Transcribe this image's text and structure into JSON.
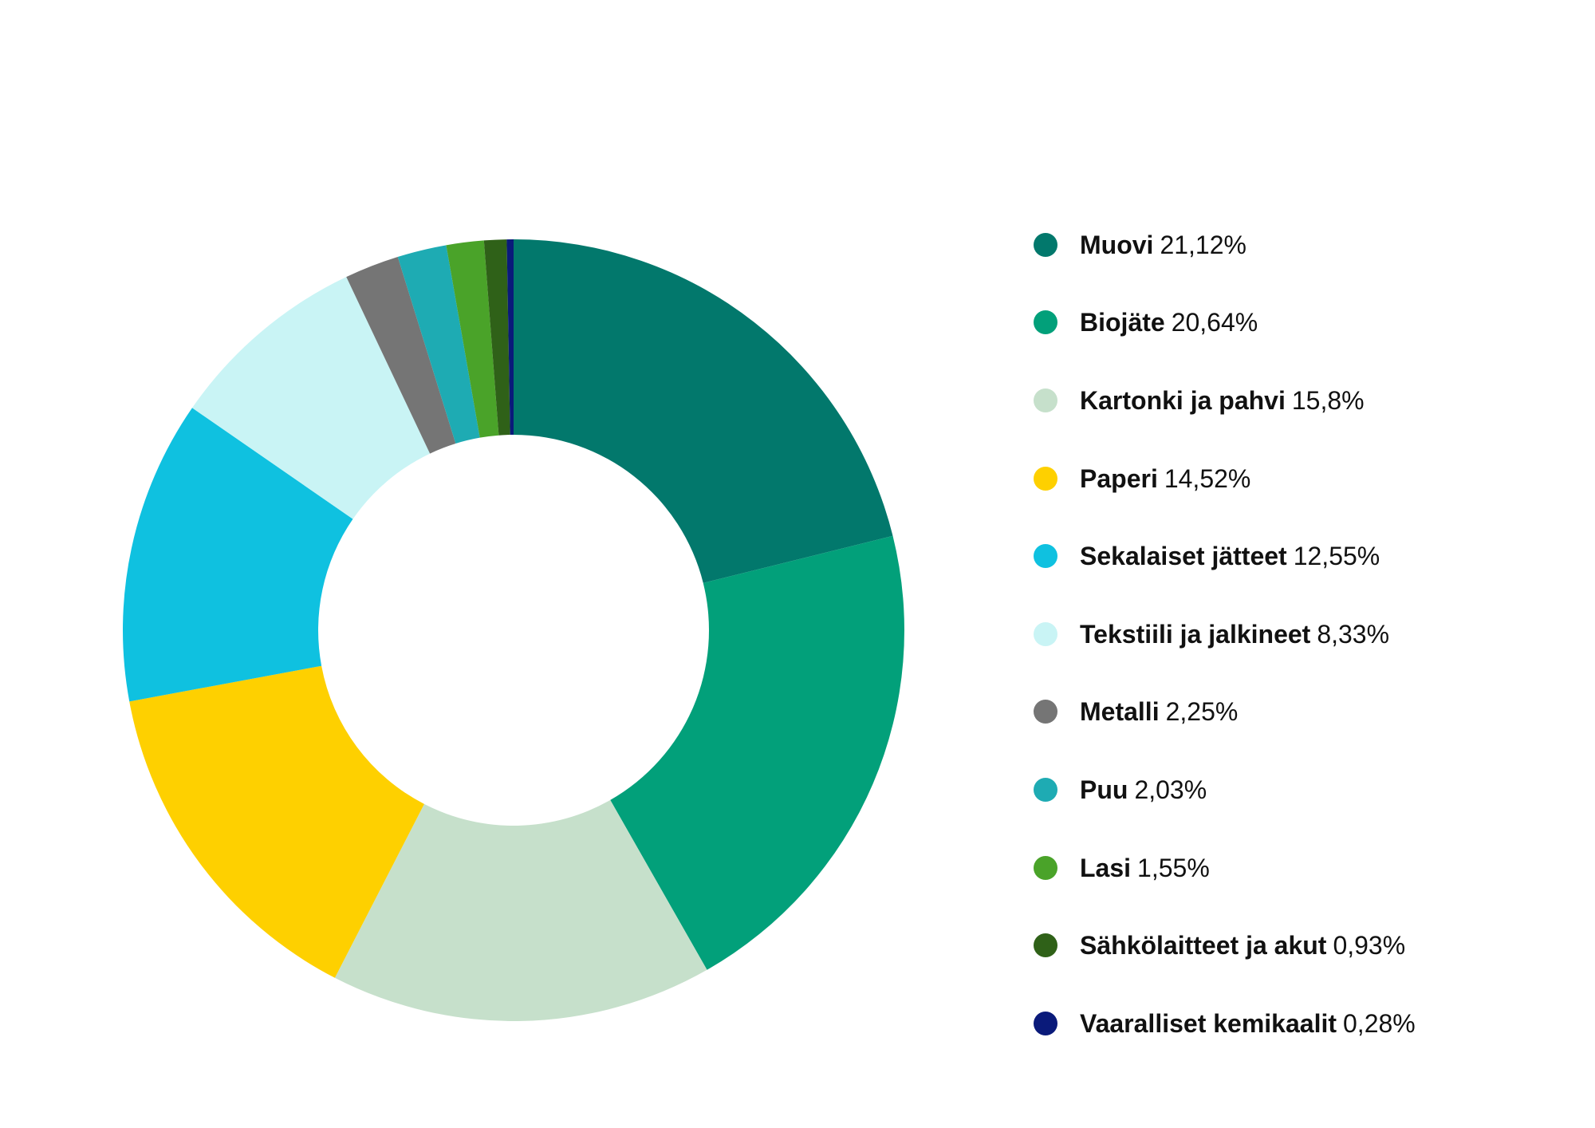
{
  "chart_data": {
    "type": "pie",
    "variant": "donut",
    "legend_position": "right",
    "unit": "%",
    "slices": [
      {
        "name": "Muovi",
        "value": 21.12,
        "label": "21,12%",
        "color": "#02786C"
      },
      {
        "name": "Biojäte",
        "value": 20.64,
        "label": "20,64%",
        "color": "#02A07A"
      },
      {
        "name": "Kartonki ja pahvi",
        "value": 15.8,
        "label": "15,8%",
        "color": "#C6E0CB"
      },
      {
        "name": "Paperi",
        "value": 14.52,
        "label": "14,52%",
        "color": "#FED000"
      },
      {
        "name": "Sekalaiset jätteet",
        "value": 12.55,
        "label": "12,55%",
        "color": "#0FC1E0"
      },
      {
        "name": "Tekstiili ja jalkineet",
        "value": 8.33,
        "label": "8,33%",
        "color": "#C9F4F5"
      },
      {
        "name": "Metalli",
        "value": 2.25,
        "label": "2,25%",
        "color": "#757575"
      },
      {
        "name": "Puu",
        "value": 2.03,
        "label": "2,03%",
        "color": "#1EABB3"
      },
      {
        "name": "Lasi",
        "value": 1.55,
        "label": "1,55%",
        "color": "#4AA329"
      },
      {
        "name": "Sähkölaitteet ja akut",
        "value": 0.93,
        "label": "0,93%",
        "color": "#2F6118"
      },
      {
        "name": "Vaaralliset kemikaalit",
        "value": 0.28,
        "label": "0,28%",
        "color": "#0A1A7A"
      }
    ]
  }
}
